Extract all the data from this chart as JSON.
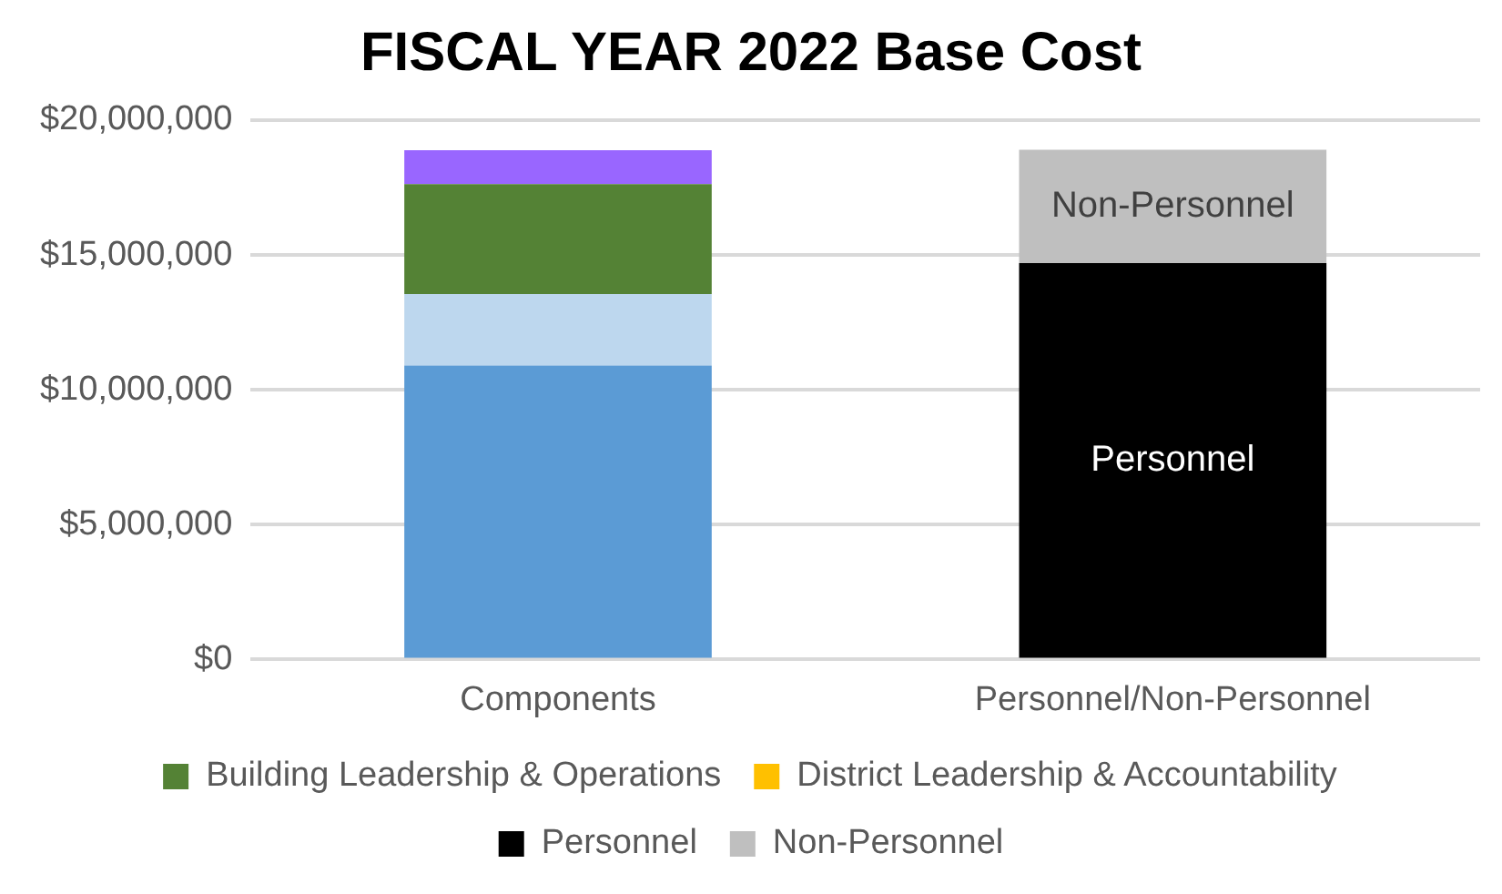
{
  "chart_data": {
    "type": "bar",
    "title": "FISCAL YEAR 2022 Base Cost",
    "stacked": true,
    "categories": [
      "Components",
      "Personnel/Non-Personnel"
    ],
    "series": [
      {
        "color": "#5b9bd5",
        "values": [
          10900000,
          null
        ]
      },
      {
        "color": "#bdd7ee",
        "values": [
          2650000,
          null
        ]
      },
      {
        "name": "Building Leadership & Operations",
        "color": "#548235",
        "values": [
          4080000,
          null
        ]
      },
      {
        "name": "District Leadership & Accountability",
        "color": "#ffc000",
        "values": [
          0,
          null
        ]
      },
      {
        "color": "#9966ff",
        "values": [
          1260000,
          null
        ]
      },
      {
        "name": "Personnel",
        "color": "#000000",
        "values": [
          null,
          14700000
        ],
        "value_labels": [
          null,
          "Personnel"
        ]
      },
      {
        "name": "Non-Personnel",
        "color": "#bfbfbf",
        "values": [
          null,
          4200000
        ],
        "value_labels": [
          null,
          "Non-Personnel"
        ]
      }
    ],
    "ylim": [
      0,
      20000000
    ],
    "yticks": [
      {
        "value": 0,
        "label": "$0"
      },
      {
        "value": 5000000,
        "label": "$5,000,000"
      },
      {
        "value": 10000000,
        "label": "$10,000,000"
      },
      {
        "value": 15000000,
        "label": "$15,000,000"
      },
      {
        "value": 20000000,
        "label": "$20,000,000"
      }
    ],
    "grid": "y",
    "legend": "bottom"
  }
}
